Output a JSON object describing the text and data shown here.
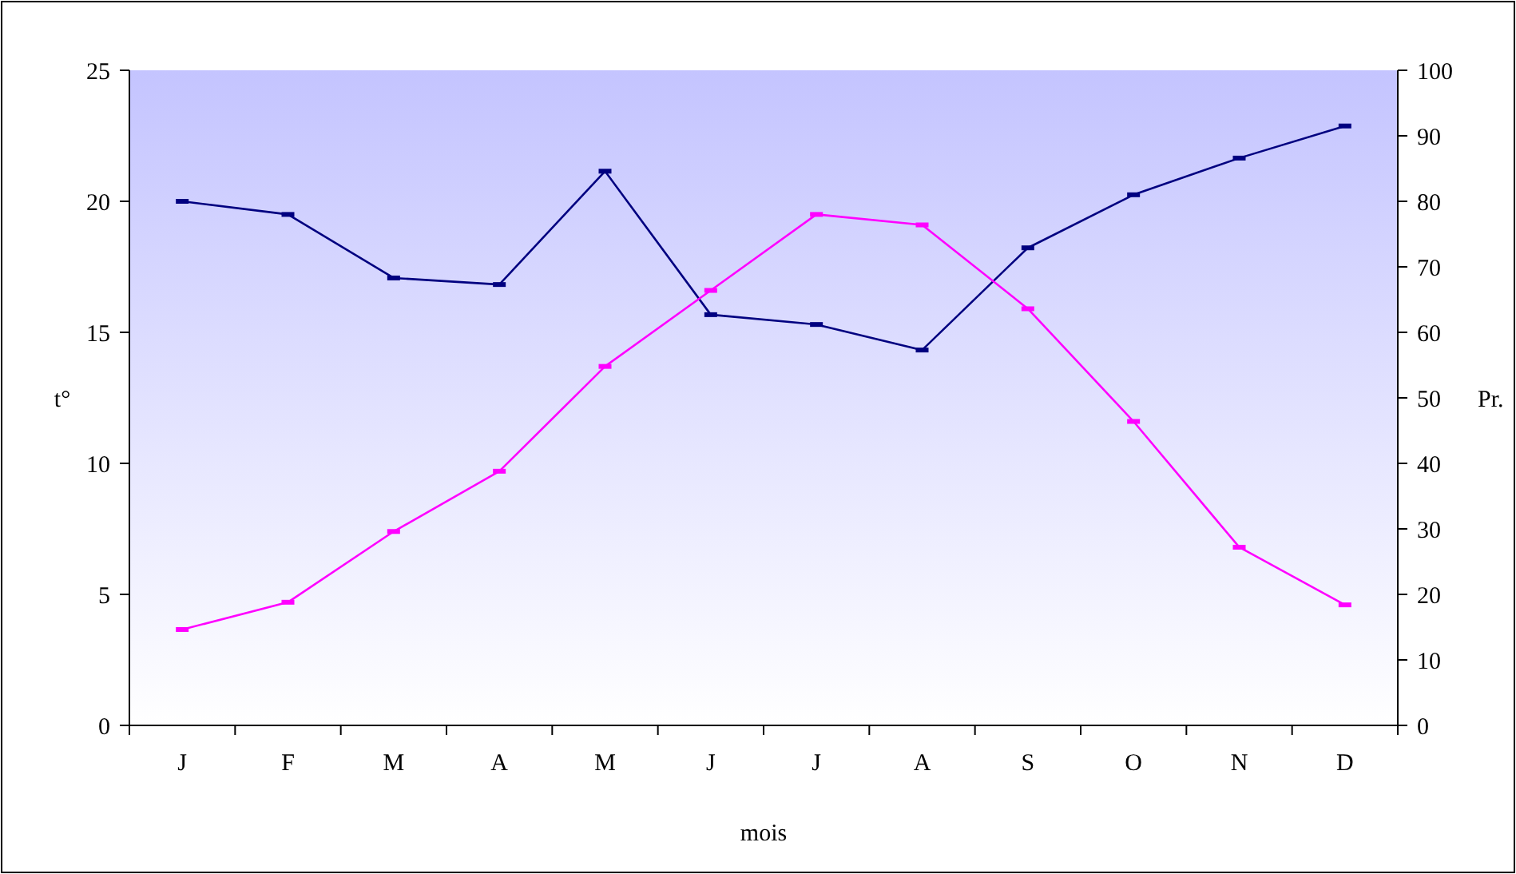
{
  "chart_data": {
    "type": "line",
    "xlabel": "mois",
    "ylabel": "t°",
    "y2label": "Pr.",
    "categories": [
      "J",
      "F",
      "M",
      "A",
      "M",
      "J",
      "J",
      "A",
      "S",
      "O",
      "N",
      "D"
    ],
    "series": [
      {
        "color": "#000080",
        "axis": "y2",
        "values": [
          80,
          78,
          68.3,
          67.3,
          84.6,
          62.7,
          61.2,
          57.3,
          72.9,
          81,
          86.6,
          91.5
        ]
      },
      {
        "color": "#ff00ff",
        "values": [
          3.66,
          4.7,
          7.4,
          9.7,
          13.7,
          16.6,
          19.5,
          19.1,
          15.9,
          11.6,
          6.8,
          4.6
        ]
      }
    ],
    "ylim": [
      0,
      25
    ],
    "yticks": [
      0,
      5,
      10,
      15,
      20,
      25
    ],
    "y2lim": [
      0,
      100
    ],
    "y2ticks": [
      0,
      10,
      20,
      30,
      40,
      50,
      60,
      70,
      80,
      90,
      100
    ],
    "grid": false,
    "marker": "square",
    "line_style": "solid"
  }
}
